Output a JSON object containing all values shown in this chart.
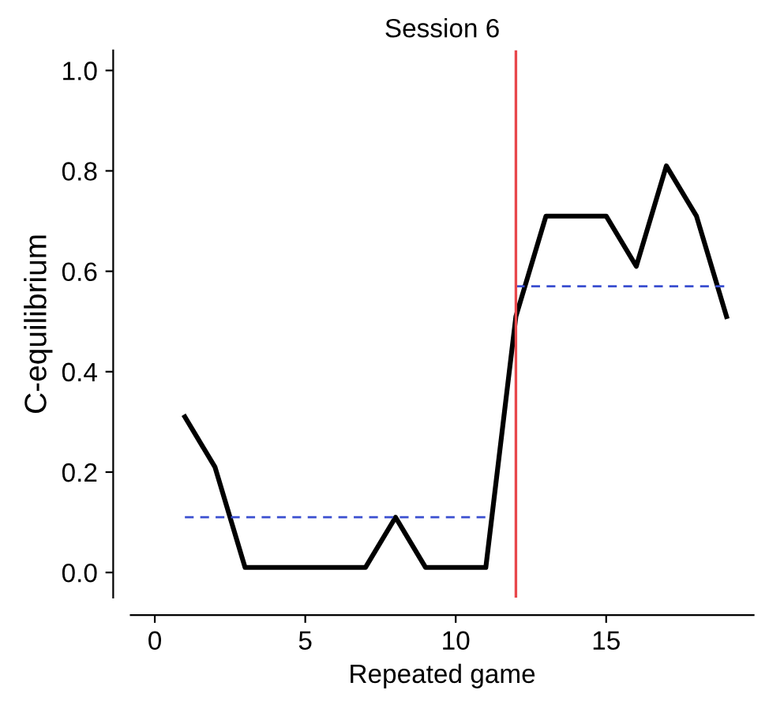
{
  "chart_data": {
    "type": "line",
    "title": "Session 6",
    "xlabel": "Repeated game",
    "ylabel": "C-equilibrium",
    "x": [
      1,
      2,
      3,
      4,
      5,
      6,
      7,
      8,
      9,
      10,
      11,
      12,
      13,
      14,
      15,
      16,
      17,
      18,
      19
    ],
    "series": [
      {
        "color": "#000000",
        "values": [
          0.31,
          0.21,
          0.01,
          0.01,
          0.01,
          0.01,
          0.01,
          0.11,
          0.01,
          0.01,
          0.01,
          0.51,
          0.71,
          0.71,
          0.71,
          0.61,
          0.81,
          0.71,
          0.51
        ]
      },
      {
        "color": "#3a4fd0",
        "line_style": "dashed",
        "x": [
          1,
          11
        ],
        "values": [
          0.11,
          0.11
        ]
      },
      {
        "color": "#3a4fd0",
        "line_style": "dashed",
        "x": [
          12,
          19
        ],
        "values": [
          0.57,
          0.57
        ]
      }
    ],
    "ref_lines": [
      {
        "axis": "x",
        "value": 12,
        "color": "#e8474b"
      }
    ],
    "xlim": [
      -0.8,
      19.9
    ],
    "ylim": [
      -0.05,
      1.04
    ],
    "xticks": [
      0,
      5,
      10,
      15
    ],
    "yticks": [
      {
        "value": 0,
        "label": "0.0"
      },
      {
        "value": 0.2,
        "label": "0.2"
      },
      {
        "value": 0.4,
        "label": "0.4"
      },
      {
        "value": 0.6,
        "label": "0.6"
      },
      {
        "value": 0.8,
        "label": "0.8"
      },
      {
        "value": 1,
        "label": "1.0"
      }
    ],
    "grid": false,
    "line_style": "solid",
    "marker": "none"
  }
}
